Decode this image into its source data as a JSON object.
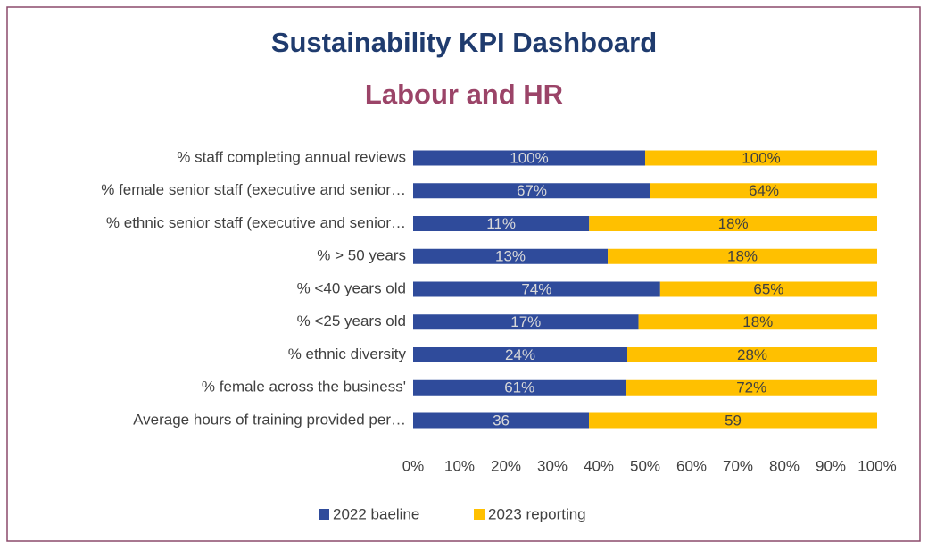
{
  "chart_data": {
    "type": "bar",
    "orientation": "horizontal",
    "stacking": "percent",
    "title": "Sustainability KPI Dashboard",
    "subtitle": "Labour and HR",
    "categories": [
      "% staff completing annual reviews",
      "% female senior staff (executive and senior…",
      "% ethnic senior staff (executive and senior…",
      "% > 50 years",
      "% <40 years old",
      "% <25 years old",
      "% ethnic diversity",
      "% female across the business'",
      "Average hours of training provided per…"
    ],
    "series": [
      {
        "name": "2022 baeline",
        "color": "#2f4b9b",
        "values": [
          100,
          67,
          11,
          13,
          74,
          17,
          24,
          61,
          36
        ],
        "value_labels": [
          "100%",
          "67%",
          "11%",
          "13%",
          "74%",
          "17%",
          "24%",
          "61%",
          "36"
        ]
      },
      {
        "name": "2023 reporting",
        "color": "#ffc000",
        "values": [
          100,
          64,
          18,
          18,
          65,
          18,
          28,
          72,
          59
        ],
        "value_labels": [
          "100%",
          "64%",
          "18%",
          "18%",
          "65%",
          "18%",
          "28%",
          "72%",
          "59"
        ]
      }
    ],
    "xlim": [
      0,
      100
    ],
    "xticks": [
      {
        "value": 0,
        "label": "0%"
      },
      {
        "value": 10,
        "label": "10%"
      },
      {
        "value": 20,
        "label": "20%"
      },
      {
        "value": 30,
        "label": "30%"
      },
      {
        "value": 40,
        "label": "40%"
      },
      {
        "value": 50,
        "label": "50%"
      },
      {
        "value": 60,
        "label": "60%"
      },
      {
        "value": 70,
        "label": "70%"
      },
      {
        "value": 80,
        "label": "80%"
      },
      {
        "value": 90,
        "label": "90%"
      },
      {
        "value": 100,
        "label": "100%"
      }
    ],
    "grid": false,
    "legend": "bottom"
  }
}
